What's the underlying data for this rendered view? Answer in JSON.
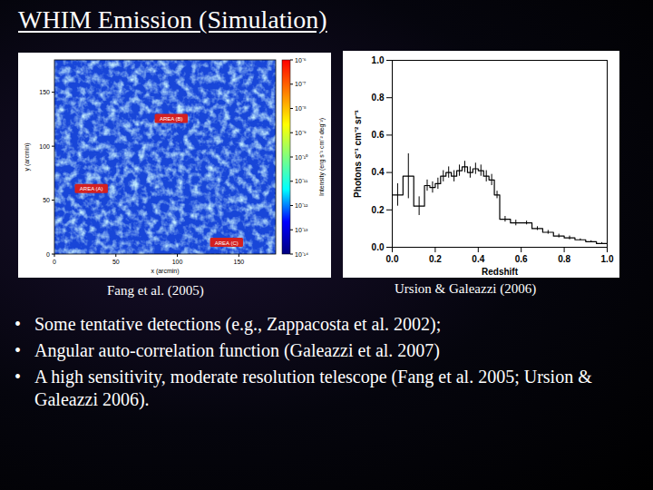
{
  "title": "WHIM Emission (Simulation)",
  "map": {
    "xlabel": "x (arcmin)",
    "ylabel": "y (arcmin)",
    "xlim": [
      0,
      180
    ],
    "ylim": [
      0,
      180
    ],
    "xticks": [
      0,
      50,
      100,
      150
    ],
    "yticks": [
      0,
      50,
      100,
      150
    ],
    "areas": [
      {
        "label": "AREA (B)",
        "x": 95,
        "y": 125
      },
      {
        "label": "AREA (A)",
        "x": 30,
        "y": 60
      },
      {
        "label": "AREA (C)",
        "x": 140,
        "y": 10
      }
    ],
    "colorbar": {
      "label": "Intensity (erg s⁻¹ cm⁻² deg⁻²)",
      "range": [
        -14,
        -6
      ],
      "ticks": [
        {
          "value": -6,
          "label": "10⁻⁶"
        },
        {
          "value": -7,
          "label": "10⁻⁷"
        },
        {
          "value": -8,
          "label": "10⁻⁸"
        },
        {
          "value": -9,
          "label": "10⁻⁹"
        },
        {
          "value": -10,
          "label": "10⁻¹⁰"
        },
        {
          "value": -11,
          "label": "10⁻¹¹"
        },
        {
          "value": -12,
          "label": "10⁻¹²"
        },
        {
          "value": -13,
          "label": "10⁻¹³"
        },
        {
          "value": -14,
          "label": "10⁻¹⁴"
        }
      ]
    }
  },
  "chart_data": {
    "type": "histogram",
    "xlabel": "Redshift",
    "ylabel": "Photons s⁻¹ cm⁻² sr⁻¹",
    "bins": [
      0,
      0.05,
      0.1,
      0.15,
      0.175,
      0.2,
      0.225,
      0.25,
      0.275,
      0.3,
      0.325,
      0.35,
      0.375,
      0.4,
      0.425,
      0.45,
      0.475,
      0.5,
      0.55,
      0.6,
      0.65,
      0.7,
      0.75,
      0.8,
      0.85,
      0.9,
      0.95,
      1.0
    ],
    "values": [
      0.28,
      0.38,
      0.22,
      0.33,
      0.32,
      0.34,
      0.38,
      0.4,
      0.38,
      0.41,
      0.43,
      0.4,
      0.42,
      0.41,
      0.38,
      0.36,
      0.28,
      0.15,
      0.13,
      0.13,
      0.1,
      0.08,
      0.06,
      0.05,
      0.04,
      0.03,
      0.02
    ],
    "errors": [
      0.06,
      0.12,
      0.05,
      0.03,
      0.03,
      0.03,
      0.03,
      0.03,
      0.03,
      0.03,
      0.03,
      0.03,
      0.03,
      0.03,
      0.03,
      0.03,
      0.02,
      0.015,
      0.015,
      0.01,
      0.01,
      0.01,
      0.01,
      0.01,
      0.005,
      0.005,
      0.005
    ],
    "color": "#000000",
    "xlim": [
      0,
      1.0
    ],
    "ylim": [
      0,
      1.0
    ],
    "xticks": [
      {
        "value": 0,
        "label": "0.0"
      },
      {
        "value": 0.2,
        "label": "0.2"
      },
      {
        "value": 0.4,
        "label": "0.4"
      },
      {
        "value": 0.6,
        "label": "0.6"
      },
      {
        "value": 0.8,
        "label": "0.8"
      },
      {
        "value": 1.0,
        "label": "1.0"
      }
    ],
    "yticks": [
      {
        "value": 0,
        "label": "0.0"
      },
      {
        "value": 0.2,
        "label": "0.2"
      },
      {
        "value": 0.4,
        "label": "0.4"
      },
      {
        "value": 0.6,
        "label": "0.6"
      },
      {
        "value": 0.8,
        "label": "0.8"
      },
      {
        "value": 1.0,
        "label": "1.0"
      }
    ]
  },
  "captions": [
    "Fang et al. (2005)",
    "Ursion & Galeazzi (2006)"
  ],
  "bullets": [
    "Some tentative detections (e.g., Zappacosta et al. 2002);",
    "Angular auto-correlation function (Galeazzi et al. 2007)",
    "A high sensitivity, moderate resolution telescope (Fang et al. 2005; Ursion & Galeazzi 2006)."
  ]
}
